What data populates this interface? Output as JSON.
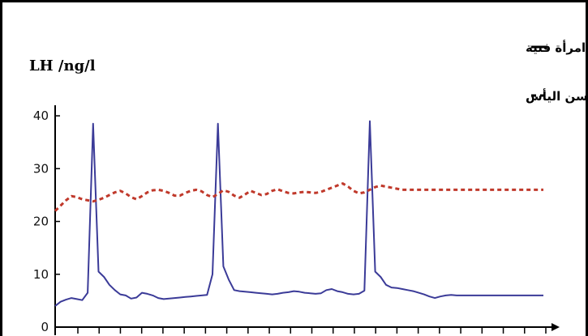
{
  "chart_data": {
    "type": "line",
    "title": "",
    "xlabel": "",
    "ylabel": "LH /ng/l",
    "ylim": [
      0,
      42
    ],
    "yticks": [
      0,
      10,
      20,
      30,
      40
    ],
    "grid": false,
    "legend_position": "top-right",
    "x": [
      0,
      1,
      2,
      3,
      4,
      5,
      6,
      7,
      8,
      9,
      10,
      11,
      12,
      13,
      14,
      15,
      16,
      17,
      18,
      19,
      20,
      21,
      22,
      23,
      24,
      25,
      26,
      27,
      28,
      29,
      30,
      31,
      32,
      33,
      34,
      35,
      36,
      37,
      38,
      39,
      40,
      41,
      42,
      43,
      44,
      45,
      46,
      47,
      48,
      49,
      50,
      51,
      52,
      53,
      54,
      55,
      56,
      57,
      58,
      59,
      60,
      61,
      62,
      63,
      64,
      65,
      66,
      67,
      68,
      69,
      70,
      71,
      72,
      73,
      74,
      75,
      76,
      77,
      78,
      79,
      80,
      81,
      82,
      83,
      84,
      85,
      86,
      87,
      88,
      89,
      90
    ],
    "series": [
      {
        "name": "امرأة فتية",
        "color": "#3b3b98",
        "dash": "solid",
        "values": [
          4,
          4.8,
          5.2,
          5.5,
          5.3,
          5.1,
          6.5,
          38.5,
          10.5,
          9.5,
          8,
          7,
          6.2,
          6,
          5.4,
          5.6,
          6.5,
          6.3,
          6,
          5.5,
          5.3,
          5.4,
          5.5,
          5.6,
          5.7,
          5.8,
          5.9,
          6,
          6.1,
          10,
          38.5,
          11.5,
          9,
          7,
          6.8,
          6.7,
          6.6,
          6.5,
          6.4,
          6.3,
          6.2,
          6.3,
          6.5,
          6.6,
          6.8,
          6.7,
          6.5,
          6.4,
          6.3,
          6.4,
          7,
          7.2,
          6.8,
          6.6,
          6.3,
          6.2,
          6.3,
          6.9,
          39,
          10.5,
          9.5,
          8,
          7.5,
          7.4,
          7.2,
          7,
          6.8,
          6.5,
          6.2,
          5.8,
          5.5,
          5.8,
          6,
          6.1,
          6,
          6,
          6,
          6,
          6,
          6,
          6,
          6,
          6,
          6,
          6,
          6,
          6,
          6,
          6,
          6,
          6
        ],
        "values_note": ""
      },
      {
        "name": "امرأة في سن اليأس",
        "color": "#c0392b",
        "dash": "dashed",
        "values": [
          22,
          23,
          24,
          24.8,
          24.6,
          24.2,
          24,
          23.8,
          24.1,
          24.5,
          25,
          25.5,
          25.8,
          25.3,
          24.6,
          24.2,
          24.8,
          25.5,
          25.9,
          26,
          25.8,
          25.4,
          24.9,
          24.9,
          25.4,
          25.8,
          26,
          25.7,
          25,
          24.6,
          25.2,
          25.9,
          25.6,
          24.9,
          24.5,
          25.1,
          25.8,
          25.4,
          25,
          25.2,
          25.8,
          26.1,
          25.7,
          25.4,
          25.3,
          25.5,
          25.6,
          25.5,
          25.4,
          25.6,
          26,
          26.4,
          26.8,
          27.2,
          26.6,
          25.8,
          25.3,
          25.5,
          26,
          26.5,
          26.8,
          26.6,
          26.4,
          26.2,
          26,
          26,
          26,
          26,
          26,
          26,
          26,
          26,
          26,
          26,
          26,
          26,
          26,
          26,
          26,
          26,
          26,
          26,
          26,
          26,
          26,
          26,
          26,
          26,
          26,
          26,
          26
        ]
      }
    ]
  },
  "legend": {
    "entries": [
      {
        "symbol": "—",
        "label": "امرأة فتية"
      },
      {
        "symbol": "--",
        "label": "امرأة في سن اليأس"
      }
    ]
  },
  "colors": {
    "line_solid": "#3b3b98",
    "line_dashed": "#c0392b",
    "axis": "#000000"
  }
}
